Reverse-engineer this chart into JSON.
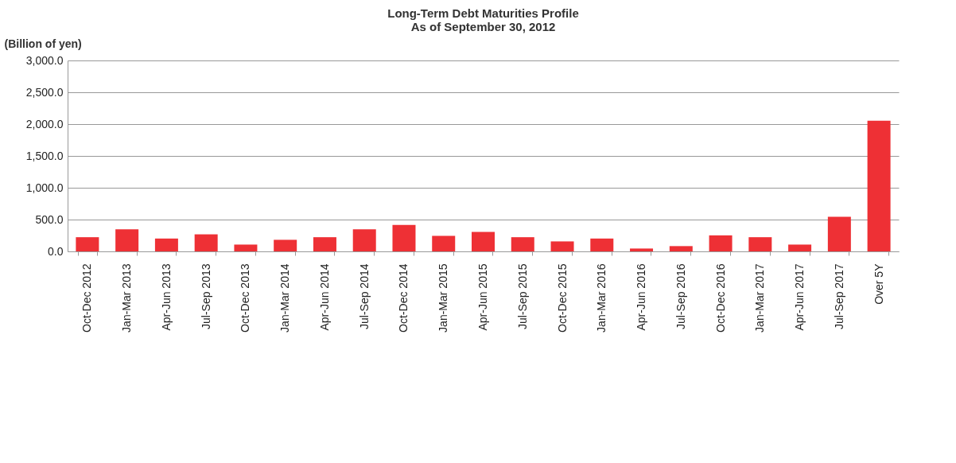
{
  "chart_data": {
    "type": "bar",
    "title": [
      "Long-Term Debt Maturities Profile",
      "As of September 30, 2012"
    ],
    "ylabel": "(Billion of yen)",
    "categories": [
      "Oct-Dec 2012",
      "Jan-Mar 2013",
      "Apr-Jun 2013",
      "Jul-Sep 2013",
      "Oct-Dec 2013",
      "Jan-Mar 2014",
      "Apr-Jun 2014",
      "Jul-Sep 2014",
      "Oct-Dec 2014",
      "Jan-Mar 2015",
      "Apr-Jun 2015",
      "Jul-Sep 2015",
      "Oct-Dec 2015",
      "Jan-Mar 2016",
      "Apr-Jun 2016",
      "Jul-Sep 2016",
      "Oct-Dec 2016",
      "Jan-Mar 2017",
      "Apr-Jun 2017",
      "Jul-Sep 2017",
      "Over 5Y"
    ],
    "values": [
      223,
      347,
      202,
      268,
      107,
      182,
      223,
      347,
      417,
      244,
      306,
      223,
      157,
      202,
      45,
      83,
      252,
      223,
      107,
      545,
      2053
    ],
    "color": "#ee3035",
    "ylim": [
      0,
      3000
    ],
    "yticks": [
      {
        "value": 0,
        "label": "0.0"
      },
      {
        "value": 500,
        "label": "500.0"
      },
      {
        "value": 1000,
        "label": "1,000.0"
      },
      {
        "value": 1500,
        "label": "1,500.0"
      },
      {
        "value": 2000,
        "label": "2,000.0"
      },
      {
        "value": 2500,
        "label": "2,500.0"
      },
      {
        "value": 3000,
        "label": "3,000.0"
      }
    ],
    "grid": "y"
  }
}
